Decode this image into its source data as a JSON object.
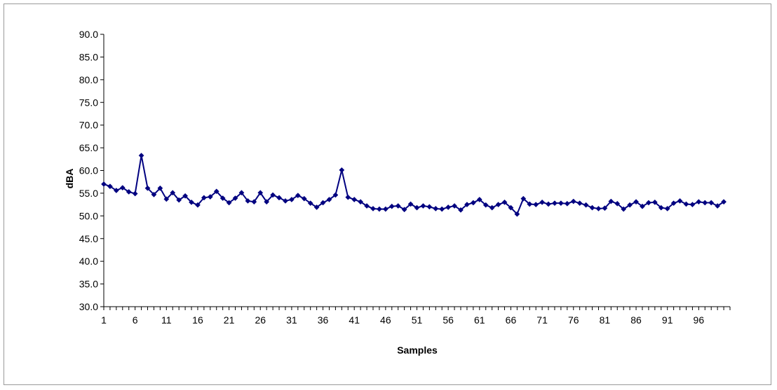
{
  "chart_data": {
    "type": "line",
    "xlabel": "Samples",
    "ylabel": "dBA",
    "ylim": [
      30,
      90
    ],
    "y_tick_step": 5,
    "y_ticks": [
      "30.0",
      "35.0",
      "40.0",
      "45.0",
      "50.0",
      "55.0",
      "60.0",
      "65.0",
      "70.0",
      "75.0",
      "80.0",
      "85.0",
      "90.0"
    ],
    "x_ticks": [
      "1",
      "6",
      "11",
      "16",
      "21",
      "26",
      "31",
      "36",
      "41",
      "46",
      "51",
      "56",
      "61",
      "66",
      "71",
      "76",
      "81",
      "86",
      "91",
      "96"
    ],
    "x_range": [
      1,
      101
    ],
    "grid": false,
    "legend": "none",
    "marker": "diamond",
    "line_color": "#000080",
    "series": [
      {
        "values": [
          57.0,
          56.5,
          55.6,
          56.2,
          55.3,
          54.9,
          63.3,
          56.1,
          54.7,
          56.1,
          53.7,
          55.1,
          53.5,
          54.4,
          53.0,
          52.4,
          54.0,
          54.2,
          55.4,
          53.9,
          52.9,
          53.9,
          55.1,
          53.3,
          53.1,
          55.1,
          53.1,
          54.6,
          54.0,
          53.3,
          53.6,
          54.5,
          53.8,
          52.8,
          51.9,
          52.9,
          53.6,
          54.6,
          60.1,
          54.1,
          53.6,
          53.1,
          52.2,
          51.6,
          51.5,
          51.5,
          52.1,
          52.2,
          51.4,
          52.6,
          51.8,
          52.2,
          52.0,
          51.6,
          51.5,
          51.9,
          52.2,
          51.3,
          52.5,
          52.9,
          53.6,
          52.4,
          51.8,
          52.5,
          53.0,
          51.8,
          50.4,
          53.8,
          52.6,
          52.5,
          53.0,
          52.6,
          52.8,
          52.8,
          52.7,
          53.2,
          52.8,
          52.4,
          51.8,
          51.6,
          51.7,
          53.2,
          52.7,
          51.5,
          52.4,
          53.1,
          52.1,
          52.9,
          53.0,
          51.8,
          51.6,
          52.8,
          53.3,
          52.6,
          52.5,
          53.1,
          52.9,
          52.9,
          52.2,
          53.1
        ]
      }
    ]
  }
}
